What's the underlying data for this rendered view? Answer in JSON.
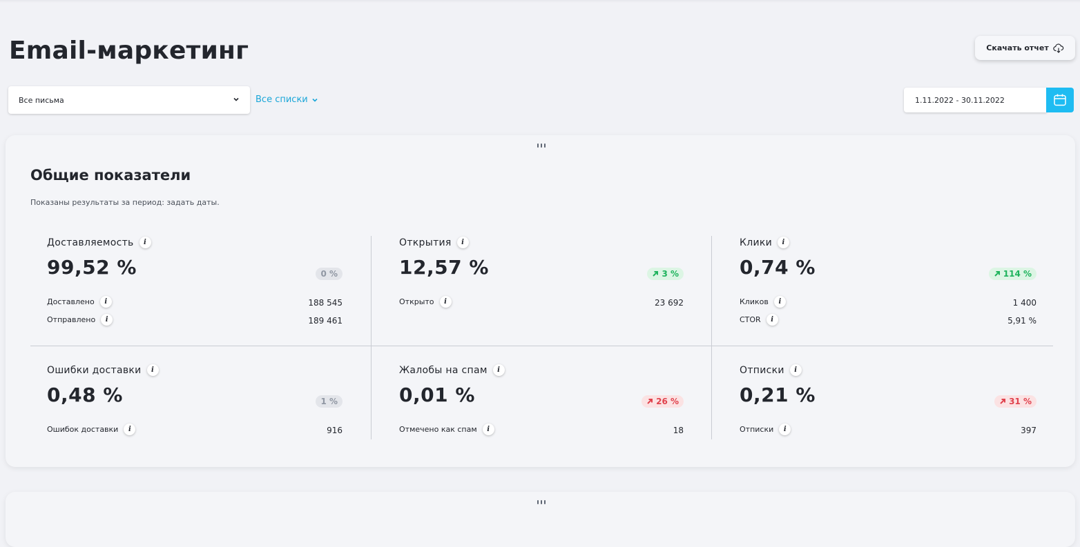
{
  "header": {
    "title": "Email-маркетинг",
    "download_label": "Скачать отчет"
  },
  "filters": {
    "letters_select": "Все письма",
    "lists_link": "Все списки",
    "date_range": "1.11.2022 - 30.11.2022"
  },
  "overview": {
    "title": "Общие показатели",
    "subtitle": "Показаны результаты за период: задать даты.",
    "metrics": [
      {
        "title": "Доставляемость",
        "value": "99,52 %",
        "change": "0 %",
        "trend": "neutral",
        "rows": [
          {
            "label": "Доставлено",
            "value": "188 545"
          },
          {
            "label": "Отправлено",
            "value": "189 461"
          }
        ]
      },
      {
        "title": "Открытия",
        "value": "12,57 %",
        "change": "3 %",
        "trend": "up-good",
        "rows": [
          {
            "label": "Открыто",
            "value": "23 692"
          }
        ]
      },
      {
        "title": "Клики",
        "value": "0,74 %",
        "change": "114 %",
        "trend": "up-good",
        "rows": [
          {
            "label": "Кликов",
            "value": "1 400"
          },
          {
            "label": "CTOR",
            "value": "5,91 %"
          }
        ]
      },
      {
        "title": "Ошибки доставки",
        "value": "0,48 %",
        "change": "1 %",
        "trend": "neutral",
        "rows": [
          {
            "label": "Ошибок доставки",
            "value": "916"
          }
        ]
      },
      {
        "title": "Жалобы на спам",
        "value": "0,01 %",
        "change": "26 %",
        "trend": "up-bad",
        "rows": [
          {
            "label": "Отмечено как спам",
            "value": "18"
          }
        ]
      },
      {
        "title": "Отписки",
        "value": "0,21 %",
        "change": "31 %",
        "trend": "up-bad",
        "rows": [
          {
            "label": "Отписки",
            "value": "397"
          }
        ]
      }
    ]
  },
  "colors": {
    "accent": "#1ebcf2",
    "link": "#1aa6d8",
    "positive": "#1eb35c",
    "negative": "#e0424d",
    "neutral": "#9097a3"
  },
  "icons": {
    "download": "cloud-download-icon",
    "calendar": "calendar-icon",
    "chevron": "chevron-down-icon",
    "info": "info-icon",
    "trend": "arrow-up-right-icon",
    "drag": "drag-handle-icon"
  },
  "info_glyph": "i"
}
